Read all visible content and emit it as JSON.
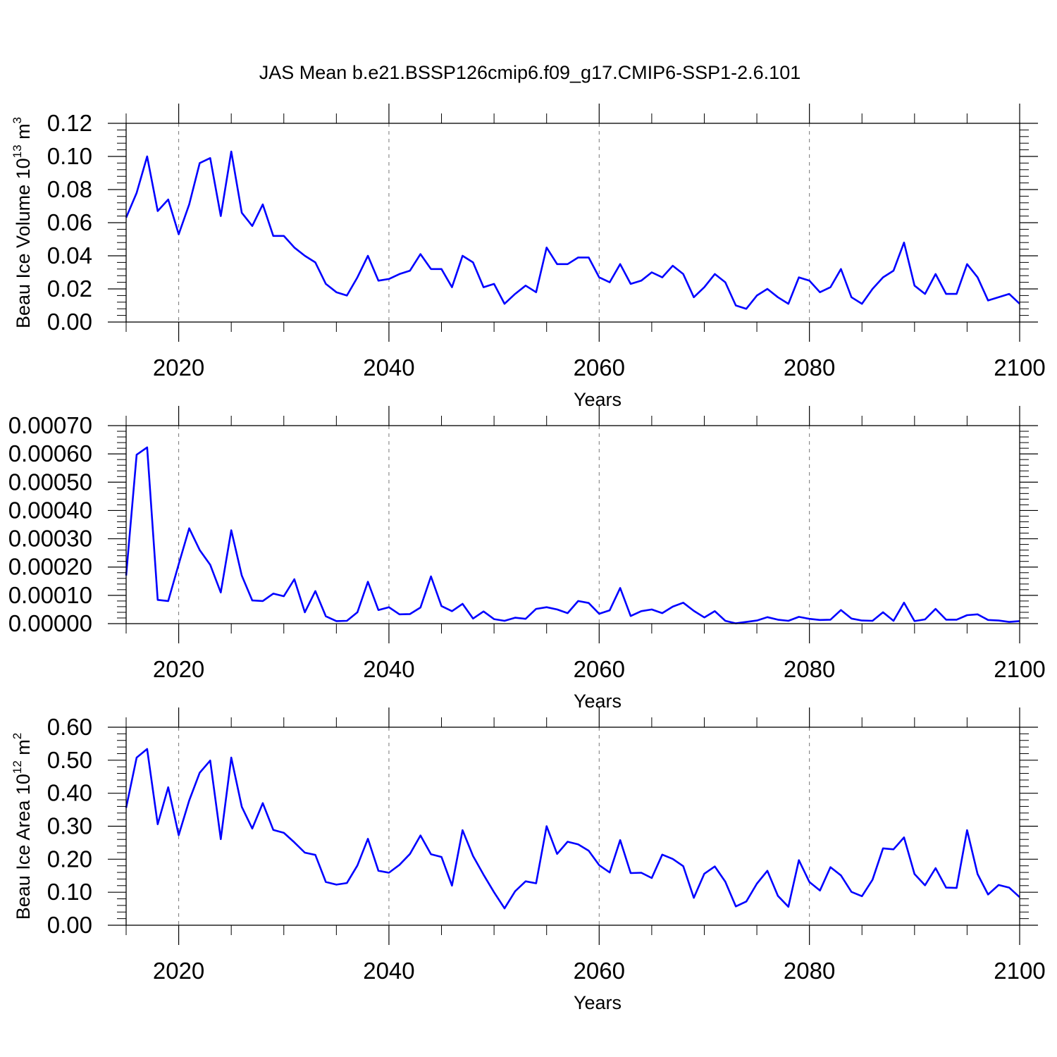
{
  "figure": {
    "title": "JAS Mean b.e21.BSSP126cmip6.f09_g17.CMIP6-SSP1-2.6.101",
    "line_color": "#0000ff",
    "grid_color": "#777777"
  },
  "chart_data": [
    {
      "type": "line",
      "name": "volume",
      "ylabel_main": "Beau Ice Volume 10",
      "ylabel_exp": "13",
      "ylabel_unit": " m",
      "ylabel_unit_exp": "3",
      "xlabel": "Years",
      "xlim": [
        2015,
        2100
      ],
      "ylim": [
        0,
        0.12
      ],
      "yticks": [
        0.0,
        0.02,
        0.04,
        0.06,
        0.08,
        0.1,
        0.12
      ],
      "ytick_labels": [
        "0.00",
        "0.02",
        "0.04",
        "0.06",
        "0.08",
        "0.10",
        "0.12"
      ],
      "xticks": [
        2020,
        2040,
        2060,
        2080,
        2100
      ],
      "xtick_labels": [
        "2020",
        "2040",
        "2060",
        "2080",
        "2100"
      ],
      "grid_x": [
        2020,
        2040,
        2060,
        2080
      ],
      "x_start": 2015,
      "values": [
        0.063,
        0.078,
        0.1,
        0.067,
        0.074,
        0.053,
        0.071,
        0.096,
        0.099,
        0.064,
        0.103,
        0.066,
        0.058,
        0.071,
        0.052,
        0.052,
        0.045,
        0.04,
        0.036,
        0.023,
        0.018,
        0.016,
        0.027,
        0.04,
        0.025,
        0.026,
        0.029,
        0.031,
        0.041,
        0.032,
        0.032,
        0.021,
        0.04,
        0.036,
        0.021,
        0.023,
        0.011,
        0.017,
        0.022,
        0.018,
        0.045,
        0.035,
        0.035,
        0.039,
        0.039,
        0.027,
        0.024,
        0.035,
        0.023,
        0.025,
        0.03,
        0.027,
        0.034,
        0.029,
        0.015,
        0.021,
        0.029,
        0.024,
        0.01,
        0.008,
        0.016,
        0.02,
        0.015,
        0.011,
        0.027,
        0.025,
        0.018,
        0.021,
        0.032,
        0.015,
        0.011,
        0.02,
        0.027,
        0.031,
        0.048,
        0.022,
        0.017,
        0.029,
        0.017,
        0.017,
        0.035,
        0.027,
        0.013,
        0.015,
        0.017,
        0.011
      ]
    },
    {
      "type": "line",
      "name": "second",
      "ylabel_main": "",
      "ylabel_exp": "",
      "ylabel_unit": "",
      "ylabel_unit_exp": "",
      "xlabel": "Years",
      "xlim": [
        2015,
        2100
      ],
      "ylim": [
        0,
        0.0007
      ],
      "yticks": [
        0.0,
        0.0001,
        0.0002,
        0.0003,
        0.0004,
        0.0005,
        0.0006,
        0.0007
      ],
      "ytick_labels": [
        "0.00000",
        "0.00010",
        "0.00020",
        "0.00030",
        "0.00040",
        "0.00050",
        "0.00060",
        "0.00070"
      ],
      "xticks": [
        2020,
        2040,
        2060,
        2080,
        2100
      ],
      "xtick_labels": [
        "2020",
        "2040",
        "2060",
        "2080",
        "2100"
      ],
      "grid_x": [
        2020,
        2040,
        2060,
        2080
      ],
      "x_start": 2015,
      "values": [
        0.00017,
        0.000597,
        0.000623,
        8.4e-05,
        8e-05,
        0.00021,
        0.000337,
        0.00026,
        0.000208,
        0.00011,
        0.00033,
        0.00017,
        8.2e-05,
        8e-05,
        0.000106,
        9.7e-05,
        0.000157,
        4e-05,
        0.000115,
        2.6e-05,
        9e-06,
        1e-05,
        4e-05,
        0.000148,
        4.8e-05,
        5.8e-05,
        3.3e-05,
        3.4e-05,
        5.7e-05,
        0.000167,
        6.2e-05,
        4.4e-05,
        7e-05,
        1.8e-05,
        4.3e-05,
        1.6e-05,
        1e-05,
        2.1e-05,
        1.7e-05,
        5.2e-05,
        5.8e-05,
        5e-05,
        3.7e-05,
        8e-05,
        7.3e-05,
        3.5e-05,
        4.7e-05,
        0.000126,
        2.7e-05,
        4.4e-05,
        5e-05,
        3.7e-05,
        6e-05,
        7.4e-05,
        4.5e-05,
        2.2e-05,
        4.4e-05,
        1e-05,
        1e-06,
        6e-06,
        1.1e-05,
        2.3e-05,
        1.4e-05,
        1e-05,
        2.4e-05,
        1.7e-05,
        1.3e-05,
        1.4e-05,
        4.8e-05,
        1.8e-05,
        1.1e-05,
        1e-05,
        4e-05,
        1e-05,
        7.4e-05,
        9e-06,
        1.5e-05,
        5.2e-05,
        1.4e-05,
        1.4e-05,
        3e-05,
        3.3e-05,
        1.3e-05,
        1.1e-05,
        6e-06,
        9e-06
      ]
    },
    {
      "type": "line",
      "name": "area",
      "ylabel_main": "Beau Ice Area 10",
      "ylabel_exp": "12",
      "ylabel_unit": " m",
      "ylabel_unit_exp": "2",
      "xlabel": "Years",
      "xlim": [
        2015,
        2100
      ],
      "ylim": [
        0,
        0.6
      ],
      "yticks": [
        0.0,
        0.1,
        0.2,
        0.3,
        0.4,
        0.5,
        0.6
      ],
      "ytick_labels": [
        "0.00",
        "0.10",
        "0.20",
        "0.30",
        "0.40",
        "0.50",
        "0.60"
      ],
      "xticks": [
        2020,
        2040,
        2060,
        2080,
        2100
      ],
      "xtick_labels": [
        "2020",
        "2040",
        "2060",
        "2080",
        "2100"
      ],
      "grid_x": [
        2020,
        2040,
        2060,
        2080
      ],
      "x_start": 2015,
      "values": [
        0.356,
        0.508,
        0.534,
        0.306,
        0.418,
        0.273,
        0.378,
        0.462,
        0.499,
        0.261,
        0.508,
        0.359,
        0.293,
        0.37,
        0.289,
        0.28,
        0.251,
        0.22,
        0.213,
        0.131,
        0.123,
        0.128,
        0.181,
        0.262,
        0.165,
        0.159,
        0.183,
        0.216,
        0.272,
        0.215,
        0.207,
        0.12,
        0.288,
        0.21,
        0.153,
        0.1,
        0.051,
        0.103,
        0.133,
        0.127,
        0.3,
        0.216,
        0.253,
        0.245,
        0.226,
        0.182,
        0.16,
        0.258,
        0.158,
        0.159,
        0.143,
        0.214,
        0.201,
        0.179,
        0.083,
        0.156,
        0.178,
        0.132,
        0.057,
        0.072,
        0.126,
        0.165,
        0.089,
        0.056,
        0.197,
        0.131,
        0.105,
        0.176,
        0.151,
        0.101,
        0.088,
        0.138,
        0.233,
        0.23,
        0.266,
        0.155,
        0.121,
        0.173,
        0.114,
        0.113,
        0.288,
        0.155,
        0.093,
        0.122,
        0.114,
        0.085
      ]
    }
  ]
}
